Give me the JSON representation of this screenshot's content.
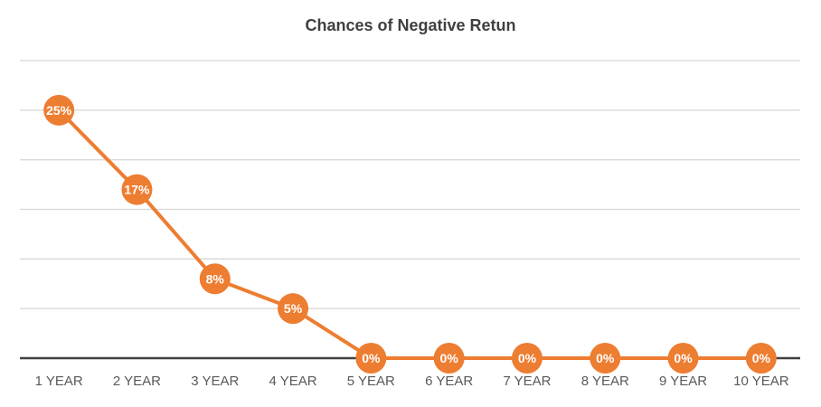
{
  "chart_data": {
    "type": "line",
    "title": "Chances of Negative Retun",
    "categories": [
      "1 YEAR",
      "2 YEAR",
      "3 YEAR",
      "4 YEAR",
      "5 YEAR",
      "6 YEAR",
      "7 YEAR",
      "8 YEAR",
      "9 YEAR",
      "10 YEAR"
    ],
    "series": [
      {
        "values": [
          25,
          17,
          8,
          5,
          0,
          0,
          0,
          0,
          0,
          0
        ],
        "labels": [
          "25%",
          "17%",
          "8%",
          "5%",
          "0%",
          "0%",
          "0%",
          "0%",
          "0%",
          "0%"
        ],
        "color": "#ED7D31"
      }
    ],
    "ylim": [
      0,
      30
    ],
    "gridlines": true,
    "legend": "none",
    "xlabel": "",
    "ylabel": ""
  },
  "colors": {
    "series": "#ED7D31",
    "grid": "#D9D9D9",
    "axis": "#404040",
    "label_text": "#FFFFFF",
    "tick_text": "#595959",
    "title_text": "#404040"
  }
}
